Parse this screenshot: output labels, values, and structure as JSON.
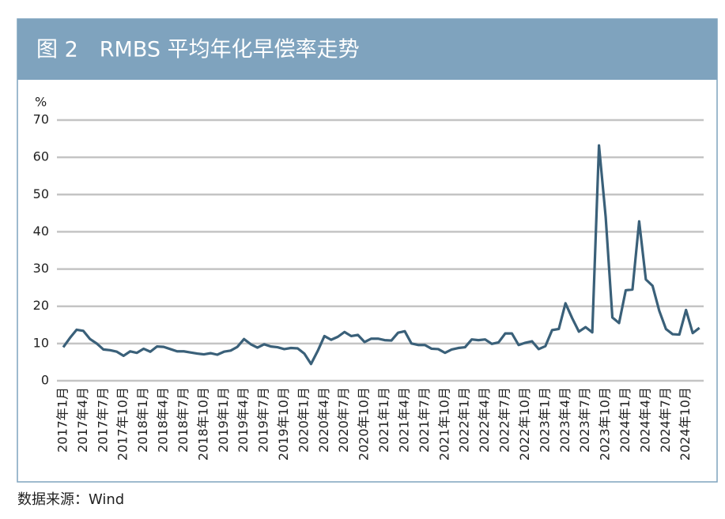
{
  "chart_data": {
    "type": "line",
    "title": "图 2　RMBS 平均年化早偿率走势",
    "ylabel": "%",
    "source": "数据来源：Wind",
    "color": "#3a6079",
    "grid": true,
    "ylim": [
      0,
      70
    ],
    "yticks": [
      0,
      10,
      20,
      30,
      40,
      50,
      60,
      70
    ],
    "categories": [
      "2017年1月",
      null,
      null,
      "2017年4月",
      null,
      null,
      "2017年7月",
      null,
      null,
      "2017年10月",
      null,
      null,
      "2018年1月",
      null,
      null,
      "2018年4月",
      null,
      null,
      "2018年7月",
      null,
      null,
      "2018年10月",
      null,
      null,
      "2019年1月",
      null,
      null,
      "2019年4月",
      null,
      null,
      "2019年7月",
      null,
      null,
      "2019年10月",
      null,
      null,
      "2020年1月",
      null,
      null,
      "2020年4月",
      null,
      null,
      "2020年7月",
      null,
      null,
      "2020年10月",
      null,
      null,
      "2021年1月",
      null,
      null,
      "2021年4月",
      null,
      null,
      "2021年7月",
      null,
      null,
      "2021年10月",
      null,
      null,
      "2022年1月",
      null,
      null,
      "2022年4月",
      null,
      null,
      "2022年7月",
      null,
      null,
      "2022年10月",
      null,
      null,
      "2023年1月",
      null,
      null,
      "2023年4月",
      null,
      null,
      "2023年7月",
      null,
      null,
      "2023年10月",
      null,
      null,
      "2024年1月",
      null,
      null,
      "2024年4月",
      null,
      null,
      "2024年7月",
      null,
      null,
      "2024年10月",
      null,
      null
    ],
    "values": [
      9,
      11.5,
      13.7,
      13.4,
      11.2,
      10,
      8.4,
      8.2,
      7.8,
      6.7,
      7.9,
      7.5,
      8.6,
      7.8,
      9.2,
      9.1,
      8.5,
      7.9,
      7.9,
      7.6,
      7.3,
      7.1,
      7.4,
      7.0,
      7.8,
      8.1,
      9.1,
      11.2,
      9.8,
      8.9,
      9.8,
      9.2,
      9.0,
      8.5,
      8.8,
      8.7,
      7.3,
      4.5,
      8.0,
      12.0,
      11.0,
      11.8,
      13.1,
      12.0,
      12.3,
      10.4,
      11.3,
      11.3,
      10.9,
      10.8,
      12.9,
      13.3,
      10.0,
      9.6,
      9.6,
      8.6,
      8.5,
      7.5,
      8.4,
      8.8,
      9.0,
      11.1,
      10.9,
      11.1,
      9.9,
      10.3,
      12.7,
      12.7,
      9.6,
      10.2,
      10.6,
      8.5,
      9.3,
      13.6,
      13.9,
      20.8,
      16.8,
      13.2,
      14.4,
      13.0,
      63.2,
      44,
      17,
      15.5,
      24.3,
      24.5,
      42.8,
      27.2,
      25.5,
      18.8,
      13.9,
      12.5,
      12.4,
      19.0,
      12.8,
      14.2
    ]
  }
}
